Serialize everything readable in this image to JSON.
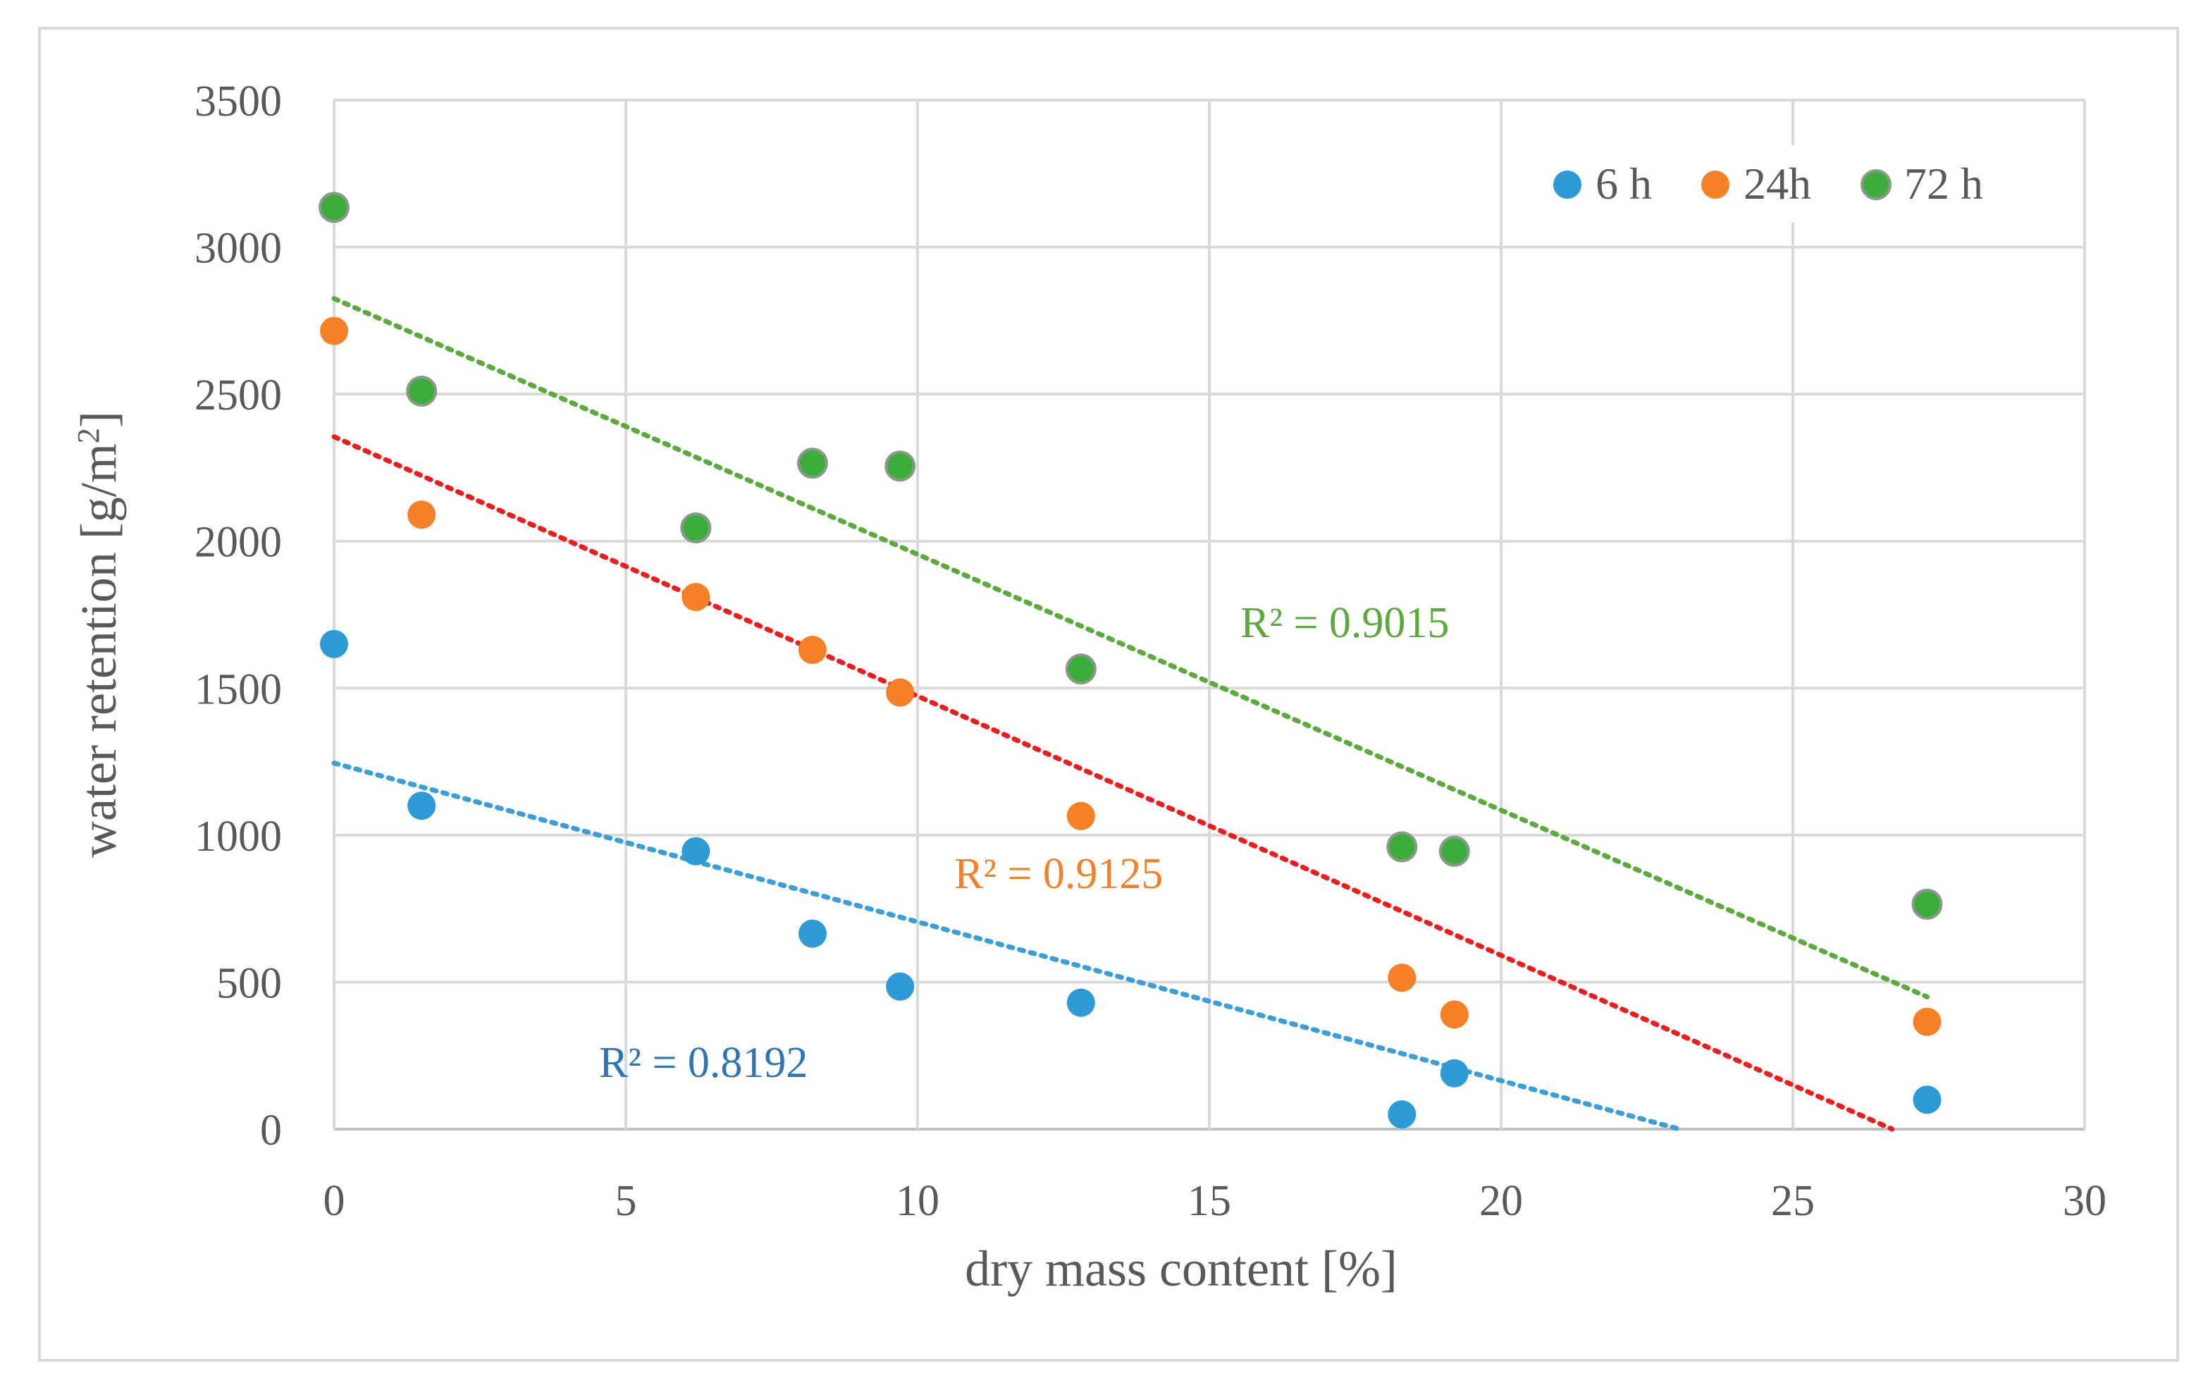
{
  "chart_data": {
    "type": "scatter",
    "title": "",
    "xlabel": "dry mass content [%]",
    "ylabel": "water retention [g/m",
    "ylabel_sup": "2",
    "ylabel_end": "]",
    "xlim": [
      0,
      30
    ],
    "ylim": [
      0,
      3500
    ],
    "xticks": [
      0,
      5,
      10,
      15,
      20,
      25,
      30
    ],
    "yticks": [
      0,
      500,
      1000,
      1500,
      2000,
      2500,
      3000,
      3500
    ],
    "grid": true,
    "legend_position": "top-right",
    "x": [
      0,
      1.5,
      6.2,
      8.2,
      9.7,
      12.8,
      18.3,
      19.2,
      27.3
    ],
    "series": [
      {
        "name": "6 h",
        "color": "#2e9bd6",
        "values": [
          1650,
          1100,
          945,
          665,
          485,
          430,
          50,
          190,
          100
        ],
        "trend": {
          "intercept": 1245,
          "slope": -54,
          "x_end": 23.1,
          "color": "#3a9fd8",
          "r2_label": "R² = 0.8192",
          "label_color": "#2e75b6"
        }
      },
      {
        "name": "24h",
        "color": "#f58025",
        "values": [
          2715,
          2090,
          1810,
          1630,
          1485,
          1065,
          515,
          390,
          365
        ],
        "trend": {
          "intercept": 2355,
          "slope": -88.2,
          "x_end": 26.7,
          "color": "#ee1c1c",
          "r2_label": "R² = 0.9125",
          "label_color": "#f58025"
        }
      },
      {
        "name": "72 h",
        "color": "#3cad3a",
        "values": [
          3135,
          2510,
          2045,
          2265,
          2255,
          1565,
          960,
          945,
          765
        ],
        "trend": {
          "intercept": 2825,
          "slope": -87,
          "x_end": 27.3,
          "color": "#5aab3c",
          "r2_label": "R² = 0.9015",
          "label_color": "#5aab3c"
        }
      }
    ]
  }
}
